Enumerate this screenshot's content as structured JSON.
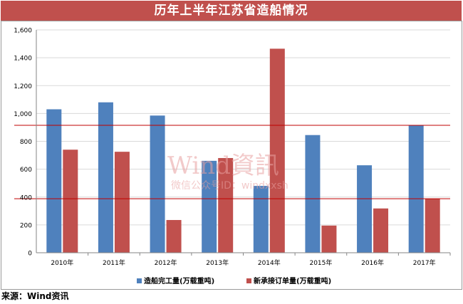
{
  "title": "历年上半年江苏省造船情况",
  "source": "来源：Wind资讯",
  "watermark": {
    "main": "Wind資訊",
    "sub": "微信公众号ID：windxxsh"
  },
  "colors": {
    "title_bg": "#c0504d",
    "series1": "#4f81bd",
    "series2": "#c0504d",
    "refline": "#c00000",
    "grid": "#d9d9d9"
  },
  "chart_data": {
    "type": "bar",
    "categories": [
      "2010年",
      "2011年",
      "2012年",
      "2013年",
      "2014年",
      "2015年",
      "2016年",
      "2017年"
    ],
    "series": [
      {
        "name": "造船完工量(万载重吨)",
        "values": [
          1030,
          1080,
          985,
          660,
          480,
          845,
          628,
          915
        ],
        "color": "#4f81bd"
      },
      {
        "name": "新承接订单量(万载重吨)",
        "values": [
          740,
          725,
          235,
          680,
          1465,
          195,
          318,
          388
        ],
        "color": "#c0504d"
      }
    ],
    "ylim": [
      0,
      1600
    ],
    "yticks": [
      "0",
      "200",
      "400",
      "600",
      "800",
      "1,000",
      "1,200",
      "1,400",
      "1,600"
    ],
    "reference_lines": [
      915,
      388
    ],
    "grid": true,
    "legend": "bottom",
    "xlabel": "",
    "ylabel": ""
  }
}
